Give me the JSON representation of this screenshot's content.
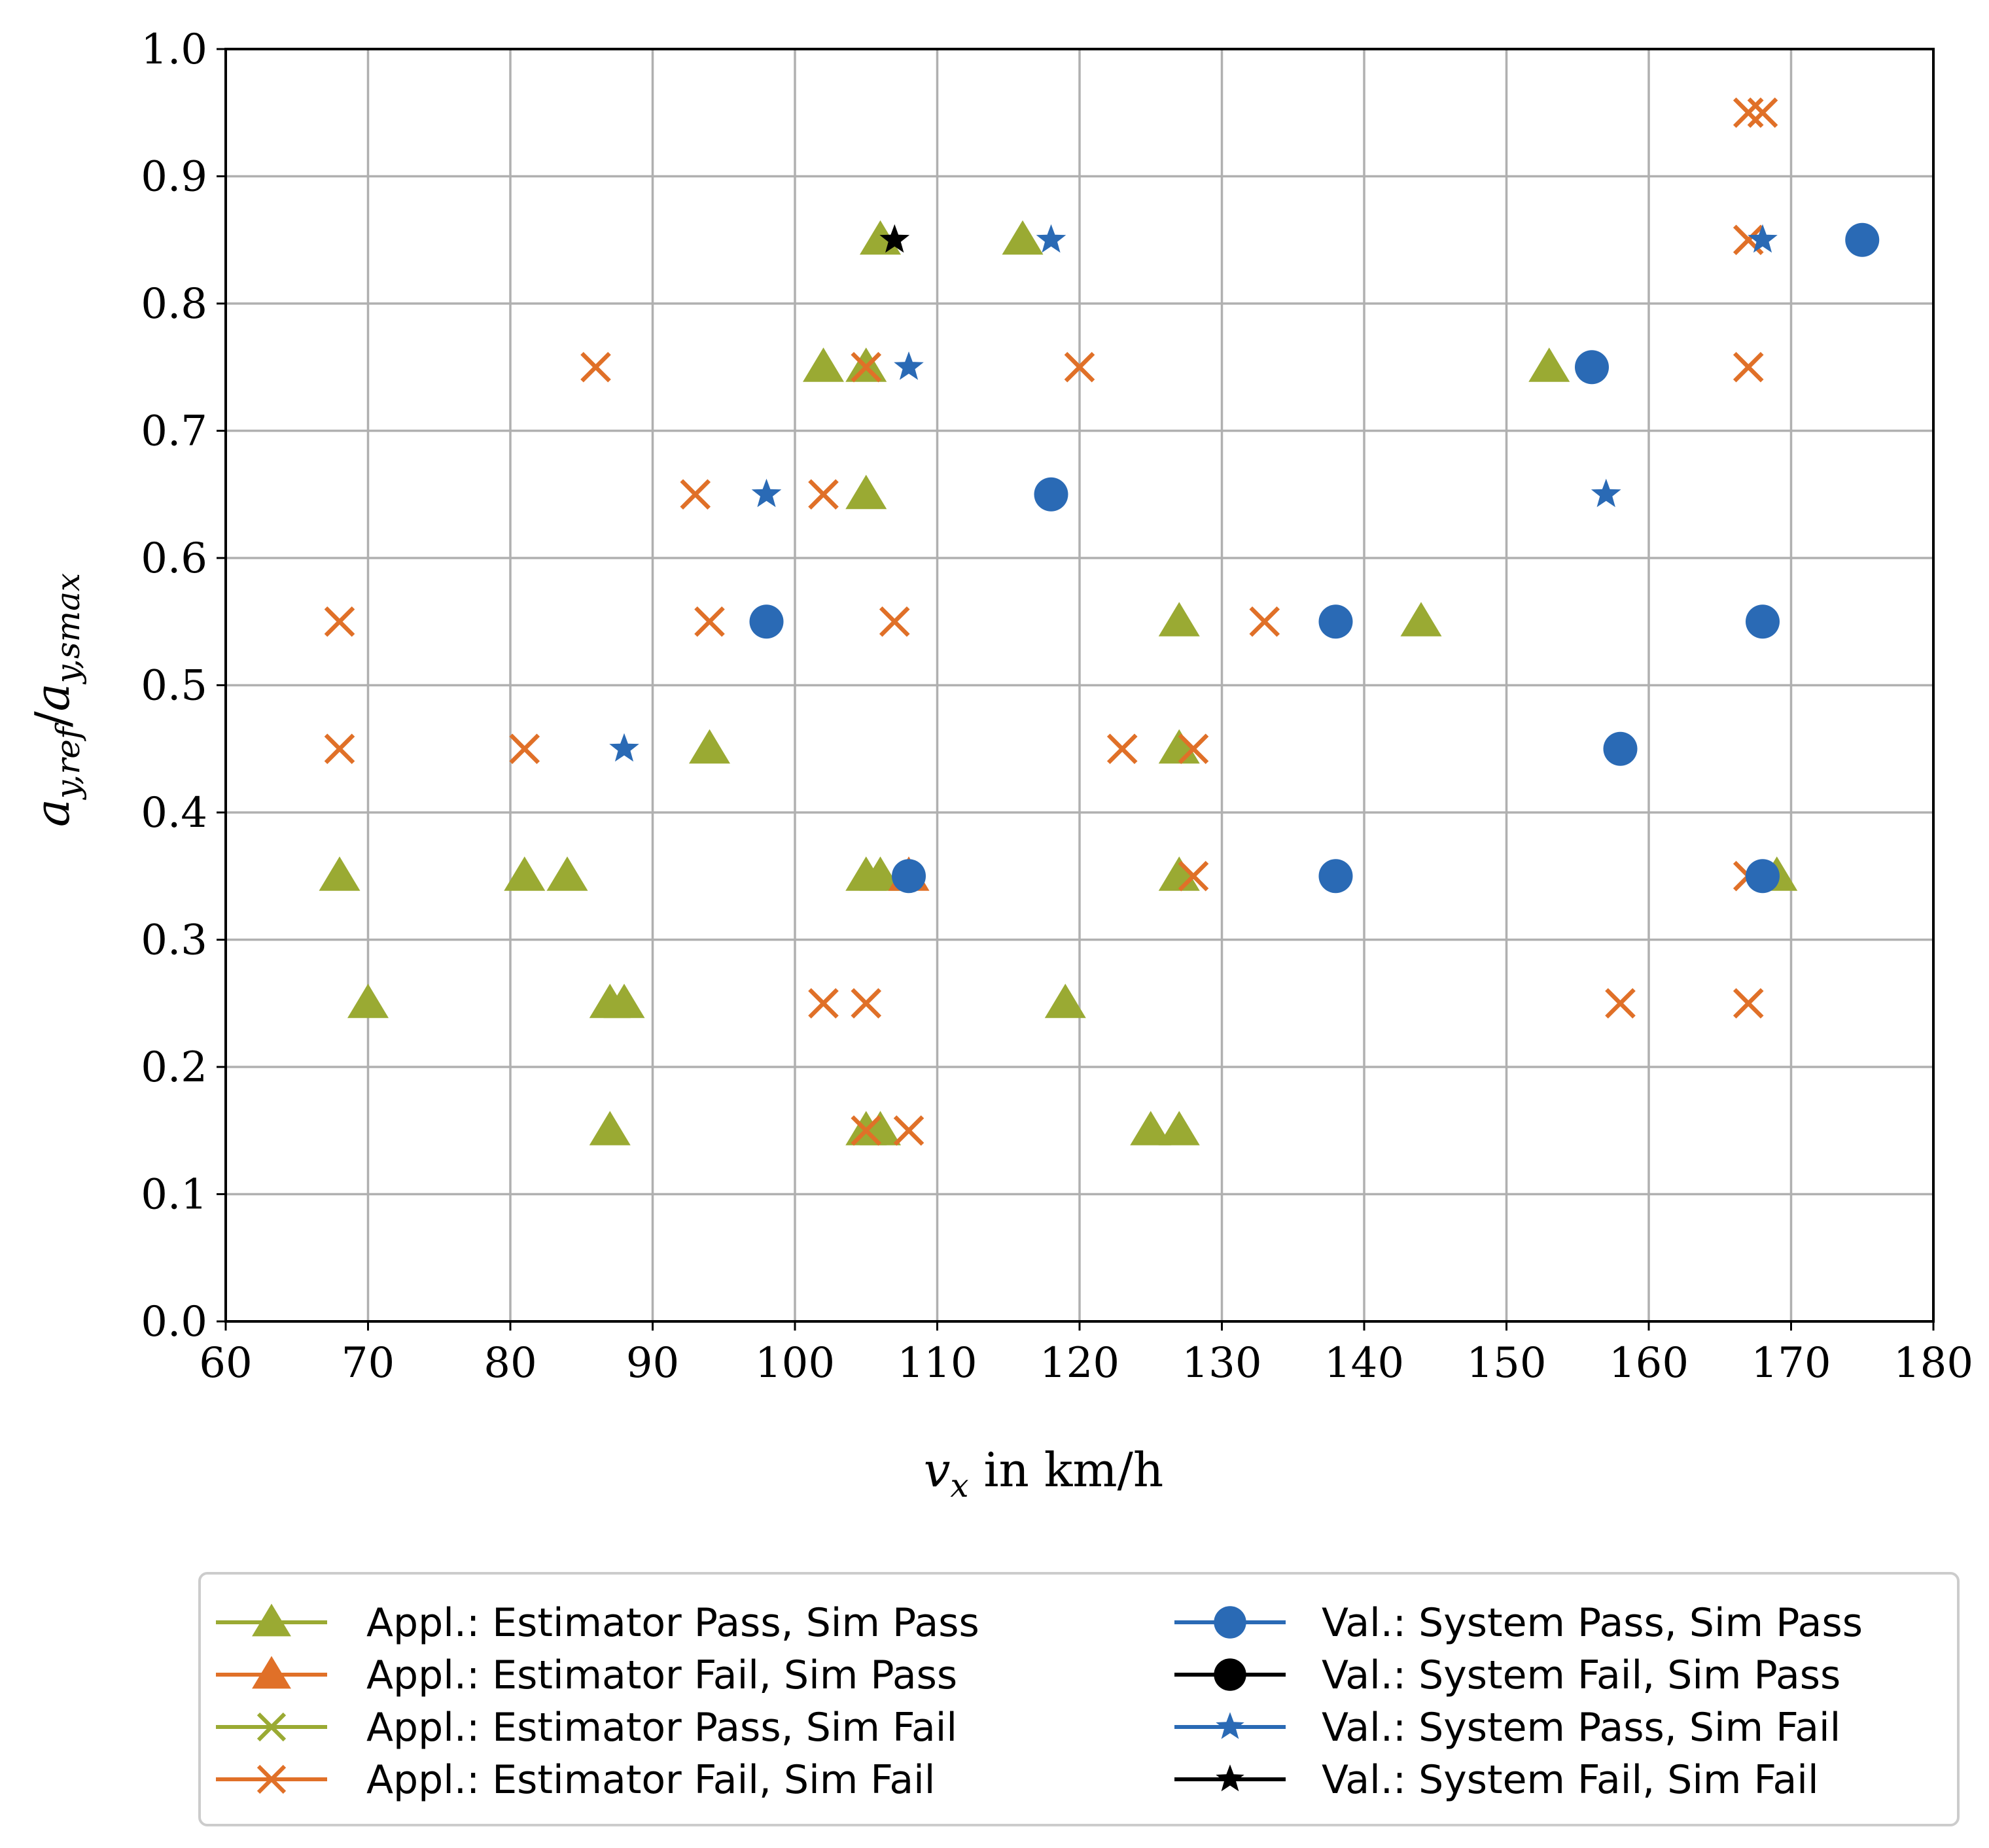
{
  "chart_data": {
    "type": "scatter",
    "title": "",
    "xlabel": {
      "var": "v",
      "sub": "x",
      "unit": " in km/h"
    },
    "ylabel": {
      "num": "a",
      "num_sub": "y,ref",
      "den": "a",
      "den_sub": "y,smax"
    },
    "xlim": [
      60,
      180
    ],
    "ylim": [
      0.0,
      1.0
    ],
    "x_ticks": [
      60,
      70,
      80,
      90,
      100,
      110,
      120,
      130,
      140,
      150,
      160,
      170,
      180
    ],
    "y_ticks": [
      0.0,
      0.1,
      0.2,
      0.3,
      0.4,
      0.5,
      0.6,
      0.7,
      0.8,
      0.9,
      1.0
    ],
    "x_tick_labels": [
      "60",
      "70",
      "80",
      "90",
      "100",
      "110",
      "120",
      "130",
      "140",
      "150",
      "160",
      "170",
      "180"
    ],
    "y_tick_labels": [
      "0.0",
      "0.1",
      "0.2",
      "0.3",
      "0.4",
      "0.5",
      "0.6",
      "0.7",
      "0.8",
      "0.9",
      "1.0"
    ],
    "grid": true,
    "legend_position": "below",
    "colors": {
      "green": "#9aaa33",
      "orange": "#e07028",
      "blue": "#2a6ab5",
      "black": "#000000"
    },
    "series": [
      {
        "name": "Appl.: Estimator Pass, Sim Pass",
        "marker": "triangle",
        "color": "#9aaa33",
        "points": [
          [
            68,
            0.35
          ],
          [
            70,
            0.25
          ],
          [
            81,
            0.35
          ],
          [
            84,
            0.35
          ],
          [
            87,
            0.25
          ],
          [
            88,
            0.25
          ],
          [
            87,
            0.15
          ],
          [
            94,
            0.45
          ],
          [
            102,
            0.75
          ],
          [
            105,
            0.75
          ],
          [
            105,
            0.65
          ],
          [
            105,
            0.35
          ],
          [
            106,
            0.35
          ],
          [
            105,
            0.15
          ],
          [
            106,
            0.15
          ],
          [
            106,
            0.85
          ],
          [
            116,
            0.85
          ],
          [
            119,
            0.25
          ],
          [
            125,
            0.15
          ],
          [
            127,
            0.15
          ],
          [
            127,
            0.55
          ],
          [
            127,
            0.45
          ],
          [
            127,
            0.35
          ],
          [
            144,
            0.55
          ],
          [
            153,
            0.75
          ],
          [
            169,
            0.35
          ]
        ]
      },
      {
        "name": "Appl.: Estimator Fail, Sim Pass",
        "marker": "triangle",
        "color": "#e07028",
        "points": [
          [
            108,
            0.35
          ]
        ]
      },
      {
        "name": "Appl.: Estimator Pass, Sim Fail",
        "marker": "x",
        "color": "#9aaa33",
        "points": []
      },
      {
        "name": "Appl.: Estimator Fail, Sim Fail",
        "marker": "x",
        "color": "#e07028",
        "points": [
          [
            68,
            0.55
          ],
          [
            68,
            0.45
          ],
          [
            81,
            0.45
          ],
          [
            86,
            0.75
          ],
          [
            93,
            0.65
          ],
          [
            94,
            0.55
          ],
          [
            102,
            0.65
          ],
          [
            102,
            0.25
          ],
          [
            105,
            0.25
          ],
          [
            105,
            0.15
          ],
          [
            108,
            0.15
          ],
          [
            105,
            0.75
          ],
          [
            107,
            0.55
          ],
          [
            120,
            0.75
          ],
          [
            123,
            0.45
          ],
          [
            128,
            0.45
          ],
          [
            128,
            0.35
          ],
          [
            133,
            0.55
          ],
          [
            158,
            0.25
          ],
          [
            167,
            0.25
          ],
          [
            167,
            0.35
          ],
          [
            167,
            0.75
          ],
          [
            167,
            0.85
          ],
          [
            167,
            0.95
          ],
          [
            168,
            0.95
          ]
        ]
      },
      {
        "name": "Val.: System Pass, Sim Pass",
        "marker": "circle",
        "color": "#2a6ab5",
        "points": [
          [
            98,
            0.55
          ],
          [
            108,
            0.35
          ],
          [
            118,
            0.65
          ],
          [
            138,
            0.55
          ],
          [
            138,
            0.35
          ],
          [
            156,
            0.75
          ],
          [
            158,
            0.45
          ],
          [
            168,
            0.55
          ],
          [
            168,
            0.35
          ],
          [
            175,
            0.85
          ]
        ]
      },
      {
        "name": "Val.: System Fail, Sim Pass",
        "marker": "circle",
        "color": "#000000",
        "points": []
      },
      {
        "name": "Val.: System Pass, Sim Fail",
        "marker": "star",
        "color": "#2a6ab5",
        "points": [
          [
            88,
            0.45
          ],
          [
            98,
            0.65
          ],
          [
            108,
            0.75
          ],
          [
            118,
            0.85
          ],
          [
            157,
            0.65
          ],
          [
            168,
            0.85
          ]
        ]
      },
      {
        "name": "Val.: System Fail, Sim Fail",
        "marker": "star",
        "color": "#000000",
        "points": [
          [
            107,
            0.85
          ]
        ]
      }
    ]
  }
}
